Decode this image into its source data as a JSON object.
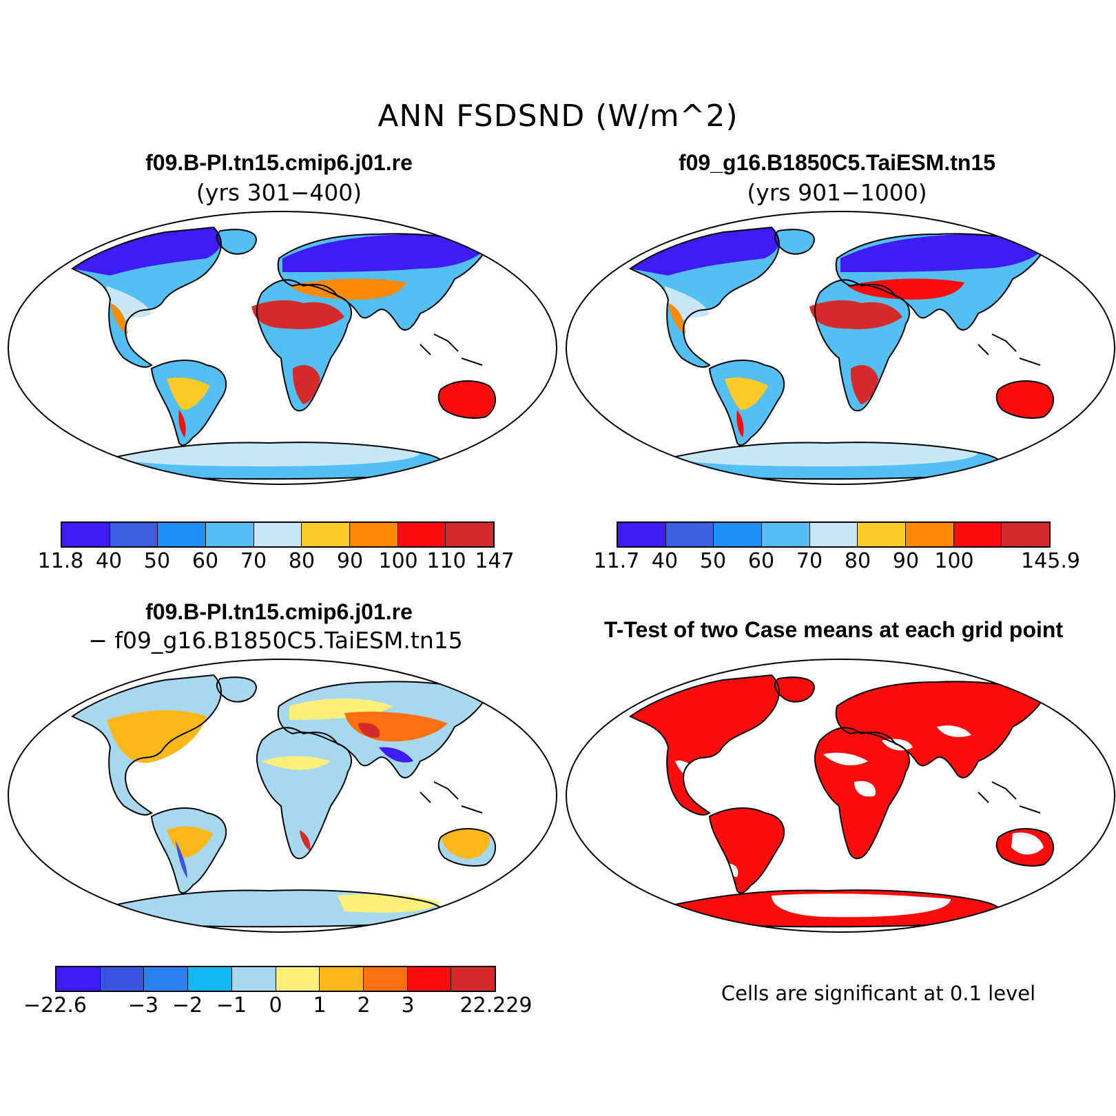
{
  "title": "ANN FSDSND (W/m^2)",
  "panels": [
    {
      "id": "case1",
      "title": "f09.B-PI.tn15.cmip6.j01.re",
      "subtitle": "(yrs 301−400)"
    },
    {
      "id": "case2",
      "title": "f09_g16.B1850C5.TaiESM.tn15",
      "subtitle": "(yrs 901−1000)"
    },
    {
      "id": "diff",
      "title": "f09.B-PI.tn15.cmip6.j01.re",
      "subtitle": "− f09_g16.B1850C5.TaiESM.tn15"
    },
    {
      "id": "ttest",
      "title": "T-Test of two Case means at each grid point",
      "note": "Cells are significant at 0.1 level"
    }
  ],
  "colorbars": {
    "case1": {
      "colors": [
        "#3e1cf5",
        "#3a5fe3",
        "#1e90f5",
        "#54bff2",
        "#c7e6f6",
        "#fccb2a",
        "#fc8a05",
        "#fc0d0d",
        "#d42a2a"
      ],
      "labels": [
        "11.8",
        "40",
        "50",
        "60",
        "70",
        "80",
        "90",
        "100",
        "110",
        "147"
      ]
    },
    "case2": {
      "colors": [
        "#3e1cf5",
        "#3a5fe3",
        "#1e90f5",
        "#54bff2",
        "#c7e6f6",
        "#fccb2a",
        "#fc8a05",
        "#fc0d0d",
        "#d42a2a"
      ],
      "labels": [
        "11.7",
        "40",
        "50",
        "60",
        "70",
        "80",
        "90",
        "100",
        "",
        "145.9"
      ]
    },
    "diff": {
      "colors": [
        "#3e1cf5",
        "#3a54e0",
        "#2a82f2",
        "#14b8f2",
        "#a6d8f0",
        "#fcf07a",
        "#fcb81a",
        "#fc7010",
        "#fc0d0d",
        "#d42a2a"
      ],
      "labels": [
        "−22.6",
        "",
        "−3",
        "−2",
        "−1",
        "0",
        "1",
        "2",
        "3",
        "",
        "22.229"
      ]
    }
  }
}
